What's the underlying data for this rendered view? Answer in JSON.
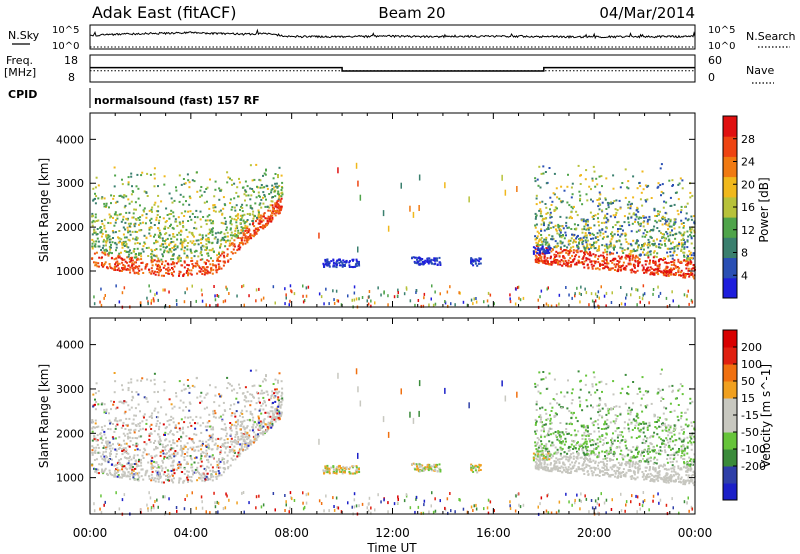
{
  "header": {
    "station": "Adak East (fitACF)",
    "beam": "Beam 20",
    "date": "04/Mar/2014"
  },
  "strip": {
    "nsky_label": "N.Sky",
    "nsearch_label": "N.Search",
    "nsky_ticks": [
      "10^5",
      "10^0"
    ],
    "nsearch_ticks": [
      "10^5",
      "10^0"
    ],
    "freq_label_1": "Freq.",
    "freq_label_2": "[MHz]",
    "freq_ticks": [
      "18",
      "8"
    ],
    "nave_label": "Nave",
    "nave_ticks": [
      "60",
      "0"
    ],
    "cpid_label": "CPID",
    "cpid_value": "normalsound (fast) 157 RF"
  },
  "colors": {
    "power": [
      "#1e1edc",
      "#2a4fb4",
      "#3a7f6e",
      "#4fa44a",
      "#b7c23a",
      "#f0b81c",
      "#f07a12",
      "#ee4412",
      "#e01010"
    ],
    "velocity": [
      "#1c20c8",
      "#2f3fa8",
      "#3b8b3b",
      "#66c43a",
      "#c8c8c0",
      "#c8c8c0",
      "#f0a020",
      "#f07010",
      "#e02010",
      "#d80000"
    ]
  },
  "chart_data": [
    {
      "type": "line",
      "title": "N.Sky / N.Search",
      "x_range_hours": [
        0,
        24
      ],
      "ylim_log10": [
        0,
        5
      ],
      "series": [
        {
          "name": "N.Sky",
          "x": [
            0,
            2,
            4,
            6,
            7,
            8,
            10,
            12,
            14,
            16,
            18,
            20,
            22,
            24
          ],
          "values": [
            2.9,
            3.3,
            3.6,
            3.2,
            3.4,
            2.6,
            2.6,
            2.7,
            2.6,
            2.7,
            2.6,
            2.5,
            2.6,
            2.6
          ]
        },
        {
          "name": "N.Search",
          "x": [
            0,
            24
          ],
          "values": [
            0,
            0
          ]
        }
      ]
    },
    {
      "type": "line",
      "x_range_hours": [
        0,
        24
      ],
      "ylim": [
        8,
        18
      ],
      "series": [
        {
          "name": "Freq.",
          "x": [
            0,
            10,
            10,
            18,
            18,
            24
          ],
          "values": [
            13.4,
            13.4,
            11.9,
            11.9,
            13.4,
            13.4
          ]
        },
        {
          "name": "Nave",
          "x": [
            0,
            24
          ],
          "values": [
            12,
            12
          ]
        }
      ]
    },
    {
      "type": "heatmap",
      "xlabel": "Time UT",
      "ylabel": "Slant Range [km]",
      "x_ticks": [
        "00:00",
        "04:00",
        "08:00",
        "12:00",
        "16:00",
        "20:00",
        "00:00"
      ],
      "y_ticks": [
        1000,
        2000,
        3000,
        4000
      ],
      "ylim": [
        180,
        4600
      ],
      "colorbar_label": "Power [dB]",
      "colorbar_ticks": [
        4,
        8,
        12,
        16,
        20,
        24,
        28
      ],
      "colorbar_range": [
        0,
        32
      ]
    },
    {
      "type": "heatmap",
      "xlabel": "Time UT",
      "ylabel": "Slant Range [km]",
      "x_ticks": [
        "00:00",
        "04:00",
        "08:00",
        "12:00",
        "16:00",
        "20:00",
        "00:00"
      ],
      "y_ticks": [
        1000,
        2000,
        3000,
        4000
      ],
      "ylim": [
        180,
        4600
      ],
      "colorbar_label": "Velocity [m s^-1]",
      "colorbar_ticks": [
        200,
        100,
        50,
        15,
        -15,
        -50,
        -100,
        -200
      ]
    }
  ],
  "x_title": "Time UT"
}
